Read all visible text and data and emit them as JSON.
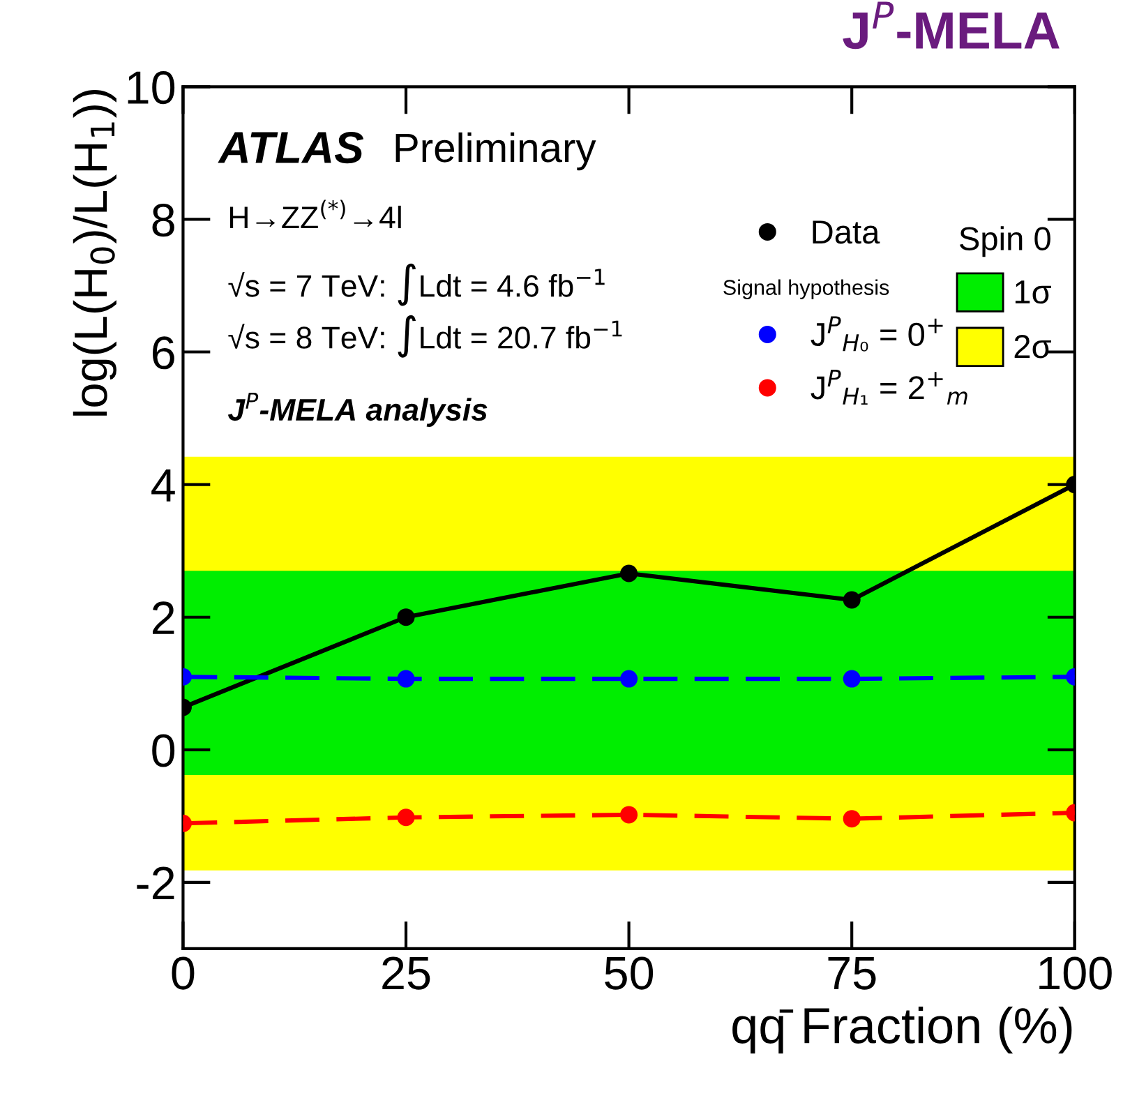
{
  "chart_data": {
    "type": "line",
    "title": "J$^{P}$-MELA",
    "xlabel": "qq̄ Fraction (%)",
    "ylabel": "log(L(H$_{0}$)/L(H$_{1}$))",
    "x": [
      0,
      25,
      50,
      75,
      100
    ],
    "xlim": [
      0,
      100
    ],
    "xticks": [
      0,
      25,
      50,
      75,
      100
    ],
    "ylim": [
      -3,
      10
    ],
    "yticks": [
      -2,
      0,
      2,
      4,
      6,
      8,
      10
    ],
    "legend": "top right",
    "legend_title": "Spin 0",
    "marker": "circle",
    "grid": false,
    "series": [
      {
        "name": "Data",
        "color": "#000000",
        "line_style": "solid",
        "values": [
          0.64,
          2.0,
          2.66,
          2.26,
          4.0
        ]
      },
      {
        "name": "J$^{P}$$_{H₀}$ = 0$^{+}$",
        "color": "#0000ff",
        "line_style": "dashed",
        "values": [
          1.1,
          1.07,
          1.07,
          1.07,
          1.1
        ]
      },
      {
        "name": "J$^{P}$$_{H₁}$ = 2$^{+}$$_{m}$",
        "color": "#ff0000",
        "line_style": "dashed",
        "values": [
          -1.11,
          -1.02,
          -0.98,
          -1.04,
          -0.95
        ]
      }
    ],
    "bands": [
      {
        "axis": "y",
        "from": -1.82,
        "to": 4.42,
        "label": "2σ",
        "color": "#ffff00"
      },
      {
        "axis": "y",
        "from": -0.38,
        "to": 2.7,
        "label": "1σ",
        "color": "#00ee00"
      }
    ],
    "annotations": [
      "ATLAS",
      "Preliminary",
      "H→ZZ$^{(*)}$→4l",
      "√s = 7 TeV: ∫Ldt = 4.6 fb$^{−1}$",
      "√s = 8 TeV: ∫Ldt = 20.7 fb$^{−1}$",
      "J$^{P}$-MELA analysis",
      "Signal hypothesis"
    ]
  }
}
